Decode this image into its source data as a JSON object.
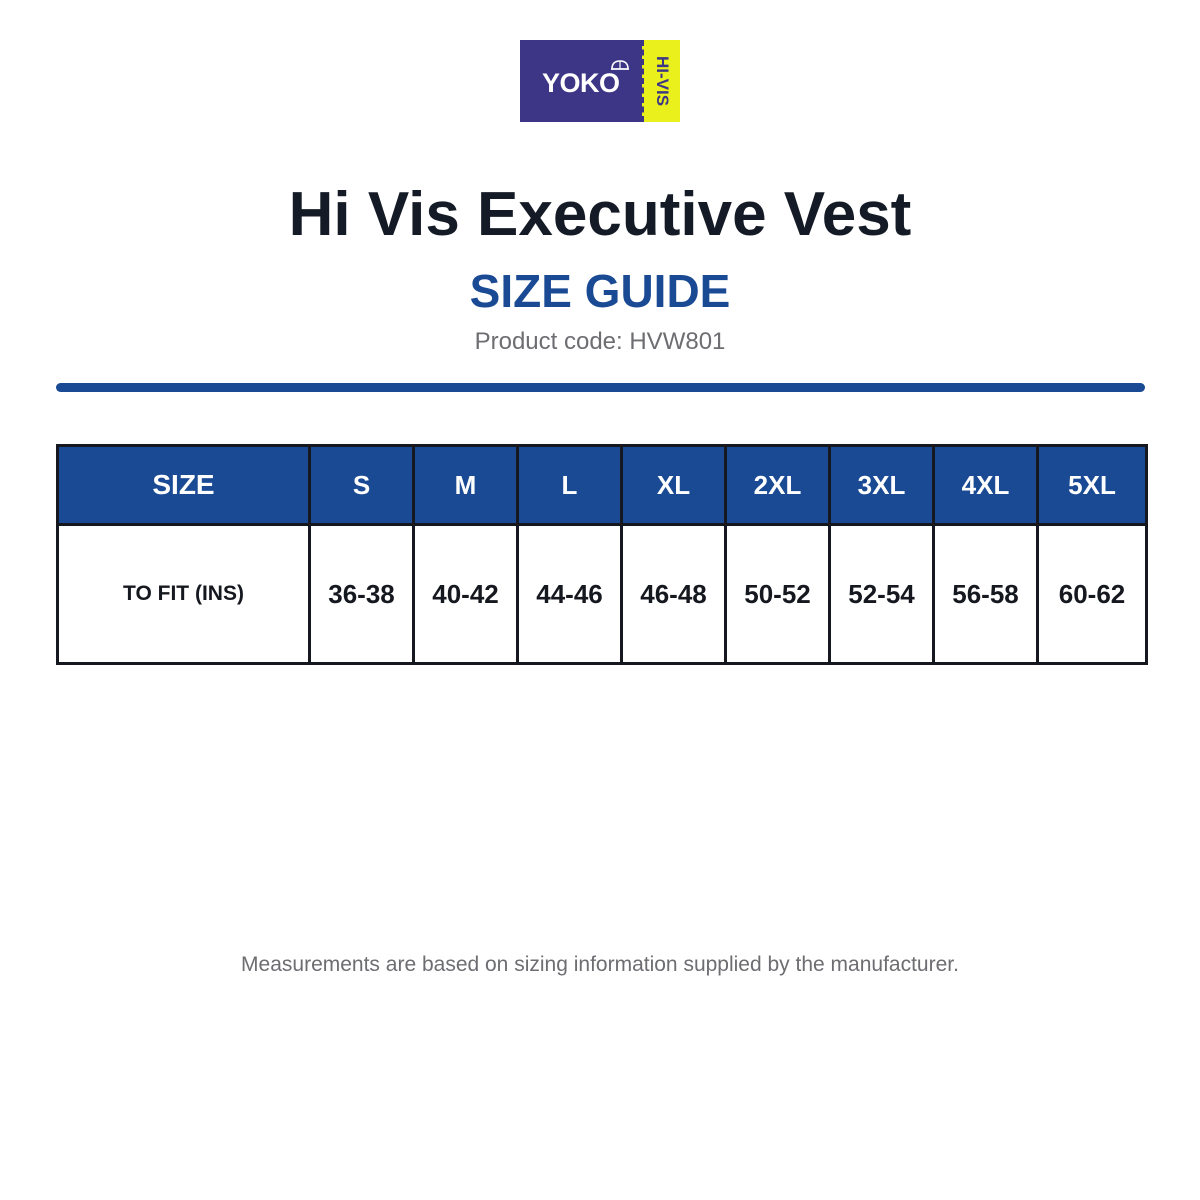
{
  "logo": {
    "brand": "YOKO",
    "tag": "HI-VIS",
    "brand_color": "#3d3585",
    "tag_color": "#e9f01b"
  },
  "header": {
    "title": "Hi Vis Executive Vest",
    "subtitle": "SIZE GUIDE",
    "product_code": "Product code: HVW801"
  },
  "table": {
    "header_label": "SIZE",
    "sizes": [
      "S",
      "M",
      "L",
      "XL",
      "2XL",
      "3XL",
      "4XL",
      "5XL"
    ],
    "row_label": "TO FIT (INS)",
    "values": [
      "36-38",
      "40-42",
      "44-46",
      "46-48",
      "50-52",
      "52-54",
      "56-58",
      "60-62"
    ]
  },
  "footnote": "Measurements are based on sizing information supplied by the manufacturer.",
  "colors": {
    "accent": "#1a4a94",
    "title": "#151b26",
    "muted": "#6d6d72"
  }
}
